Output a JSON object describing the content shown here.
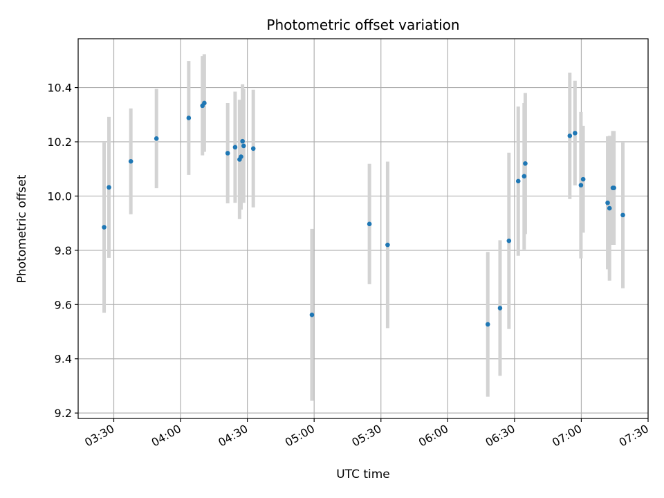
{
  "chart_data": {
    "type": "scatter",
    "title": "Photometric offset variation",
    "xlabel": "UTC time",
    "ylabel": "Photometric offset",
    "x_axis_type": "time",
    "xlim": [
      "03:14",
      "07:30"
    ],
    "ylim": [
      9.18,
      10.58
    ],
    "x_ticks": [
      "03:30",
      "04:00",
      "04:30",
      "05:00",
      "05:30",
      "06:00",
      "06:30",
      "07:00",
      "07:30"
    ],
    "y_ticks": [
      9.2,
      9.4,
      9.6,
      9.8,
      10.0,
      10.2,
      10.4
    ],
    "y_tick_labels": [
      "9.2",
      "9.4",
      "9.6",
      "9.8",
      "10.0",
      "10.2",
      "10.4"
    ],
    "grid": true,
    "errorbar_color": "#d3d3d3",
    "marker_color": "#1f77b4",
    "points": [
      {
        "t": "03:25:40",
        "y": 9.885,
        "yerr": 0.315
      },
      {
        "t": "03:27:50",
        "y": 10.032,
        "yerr": 0.26
      },
      {
        "t": "03:37:40",
        "y": 10.128,
        "yerr": 0.195
      },
      {
        "t": "03:49:10",
        "y": 10.212,
        "yerr": 0.183
      },
      {
        "t": "04:03:40",
        "y": 10.288,
        "yerr": 0.21
      },
      {
        "t": "04:09:50",
        "y": 10.333,
        "yerr": 0.183
      },
      {
        "t": "04:10:40",
        "y": 10.343,
        "yerr": 0.18
      },
      {
        "t": "04:21:10",
        "y": 10.158,
        "yerr": 0.185
      },
      {
        "t": "04:24:30",
        "y": 10.18,
        "yerr": 0.205
      },
      {
        "t": "04:26:30",
        "y": 10.135,
        "yerr": 0.22
      },
      {
        "t": "04:27:10",
        "y": 10.145,
        "yerr": 0.195
      },
      {
        "t": "04:27:50",
        "y": 10.202,
        "yerr": 0.21
      },
      {
        "t": "04:28:20",
        "y": 10.185,
        "yerr": 0.21
      },
      {
        "t": "04:32:40",
        "y": 10.175,
        "yerr": 0.217
      },
      {
        "t": "04:59:00",
        "y": 9.562,
        "yerr": 0.317
      },
      {
        "t": "05:24:50",
        "y": 9.897,
        "yerr": 0.222
      },
      {
        "t": "05:33:00",
        "y": 9.82,
        "yerr": 0.307
      },
      {
        "t": "06:18:00",
        "y": 9.527,
        "yerr": 0.267
      },
      {
        "t": "06:23:30",
        "y": 9.587,
        "yerr": 0.25
      },
      {
        "t": "06:27:30",
        "y": 9.835,
        "yerr": 0.325
      },
      {
        "t": "06:31:40",
        "y": 10.055,
        "yerr": 0.275
      },
      {
        "t": "06:34:20",
        "y": 10.073,
        "yerr": 0.27
      },
      {
        "t": "06:34:50",
        "y": 10.12,
        "yerr": 0.26
      },
      {
        "t": "06:54:50",
        "y": 10.222,
        "yerr": 0.233
      },
      {
        "t": "06:57:10",
        "y": 10.232,
        "yerr": 0.193
      },
      {
        "t": "06:59:50",
        "y": 10.04,
        "yerr": 0.27
      },
      {
        "t": "07:00:50",
        "y": 10.062,
        "yerr": 0.197
      },
      {
        "t": "07:11:50",
        "y": 9.975,
        "yerr": 0.245
      },
      {
        "t": "07:12:40",
        "y": 9.955,
        "yerr": 0.267
      },
      {
        "t": "07:14:10",
        "y": 10.03,
        "yerr": 0.21
      },
      {
        "t": "07:14:40",
        "y": 10.03,
        "yerr": 0.21
      },
      {
        "t": "07:18:40",
        "y": 9.93,
        "yerr": 0.27
      }
    ]
  }
}
